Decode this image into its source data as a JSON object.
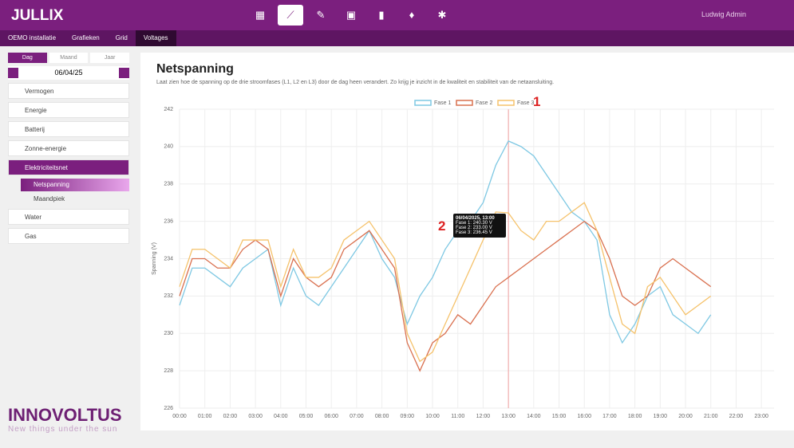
{
  "header": {
    "brand": "JULLIX",
    "user": "Ludwig Admin"
  },
  "breadcrumb": [
    "OEMO installatie",
    "Grafieken",
    "Grid",
    "Voltages"
  ],
  "sidebar": {
    "tabs": [
      "Dag",
      "Maand",
      "Jaar"
    ],
    "date": "06/04/25",
    "menu": [
      "Vermogen",
      "Energie",
      "Batterij",
      "Zonne-energie",
      "Elektriciteitsnet"
    ],
    "submenu": [
      "Netspanning",
      "Maandpiek"
    ],
    "menu2": [
      "Water",
      "Gas"
    ],
    "logo": "INNOVOLTUS",
    "slogan": "New things under the sun"
  },
  "page": {
    "title": "Netspanning",
    "subtitle": "Laat zien hoe de spanning op de drie stroomfases (L1, L2 en L3) door de dag heen verandert. Zo krijg je inzicht in de kwaliteit en stabiliteit van de netaansluiting.",
    "tooltip": {
      "title": "06/04/2025, 13:00",
      "lines": [
        "Fase 1: 240.30 V",
        "Fase 2: 233.00 V",
        "Fase 3: 236.45 V"
      ]
    },
    "annotations": [
      "1",
      "2"
    ]
  },
  "chart_data": {
    "type": "line",
    "ylabel": "Spanning (V)",
    "x": [
      "00:00",
      "00:30",
      "01:00",
      "01:30",
      "02:00",
      "02:30",
      "03:00",
      "03:30",
      "04:00",
      "04:30",
      "05:00",
      "05:30",
      "06:00",
      "06:30",
      "07:00",
      "07:30",
      "08:00",
      "08:30",
      "09:00",
      "09:30",
      "10:00",
      "10:30",
      "11:00",
      "11:30",
      "12:00",
      "12:30",
      "13:00",
      "13:30",
      "14:00",
      "14:30",
      "15:00",
      "15:30",
      "16:00",
      "16:30",
      "17:00",
      "17:30",
      "18:00",
      "18:30",
      "19:00",
      "19:30",
      "20:00",
      "20:30",
      "21:00"
    ],
    "series": [
      {
        "name": "Fase 1",
        "color": "#7ec8e3",
        "values": [
          231.5,
          233.5,
          233.5,
          233,
          232.5,
          233.5,
          234,
          234.5,
          231.5,
          233.5,
          232,
          231.5,
          232.5,
          233.5,
          234.5,
          235.5,
          234,
          233,
          230.5,
          232,
          233,
          234.5,
          235.5,
          236,
          237,
          239,
          240.3,
          240,
          239.5,
          238.5,
          237.5,
          236.5,
          236,
          235,
          231,
          229.5,
          230.5,
          232,
          232.5,
          231,
          230.5,
          230,
          231
        ]
      },
      {
        "name": "Fase 2",
        "color": "#d9704f",
        "values": [
          232,
          234,
          234,
          233.5,
          233.5,
          234.5,
          235,
          234.5,
          232,
          234,
          233,
          232.5,
          233,
          234.5,
          235,
          235.5,
          234.5,
          233.5,
          229.5,
          228,
          229.5,
          230,
          231,
          230.5,
          231.5,
          232.5,
          233,
          233.5,
          234,
          234.5,
          235,
          235.5,
          236,
          235.5,
          234,
          232,
          231.5,
          232,
          233.5,
          234,
          233.5,
          233,
          232.5
        ]
      },
      {
        "name": "Fase 3",
        "color": "#f5c26b",
        "values": [
          232.5,
          234.5,
          234.5,
          234,
          233.5,
          235,
          235,
          235,
          232.5,
          234.5,
          233,
          233,
          233.5,
          235,
          235.5,
          236,
          235,
          234,
          230,
          228.5,
          229,
          230.5,
          232,
          233.5,
          235,
          236.5,
          236.45,
          235.5,
          235,
          236,
          236,
          236.5,
          237,
          235.5,
          233,
          230.5,
          230,
          232.5,
          233,
          232,
          231,
          231.5,
          232
        ]
      }
    ],
    "xlim": [
      "00:00",
      "23:30"
    ],
    "xticks": [
      "00:00",
      "01:00",
      "02:00",
      "03:00",
      "04:00",
      "05:00",
      "06:00",
      "07:00",
      "08:00",
      "09:00",
      "10:00",
      "11:00",
      "12:00",
      "13:00",
      "14:00",
      "15:00",
      "16:00",
      "17:00",
      "18:00",
      "19:00",
      "20:00",
      "21:00",
      "22:00",
      "23:00"
    ],
    "ylim": [
      226,
      242
    ],
    "yticks": [
      226,
      228,
      230,
      232,
      234,
      236,
      238,
      240,
      242
    ],
    "grid": true,
    "legend": "top"
  }
}
